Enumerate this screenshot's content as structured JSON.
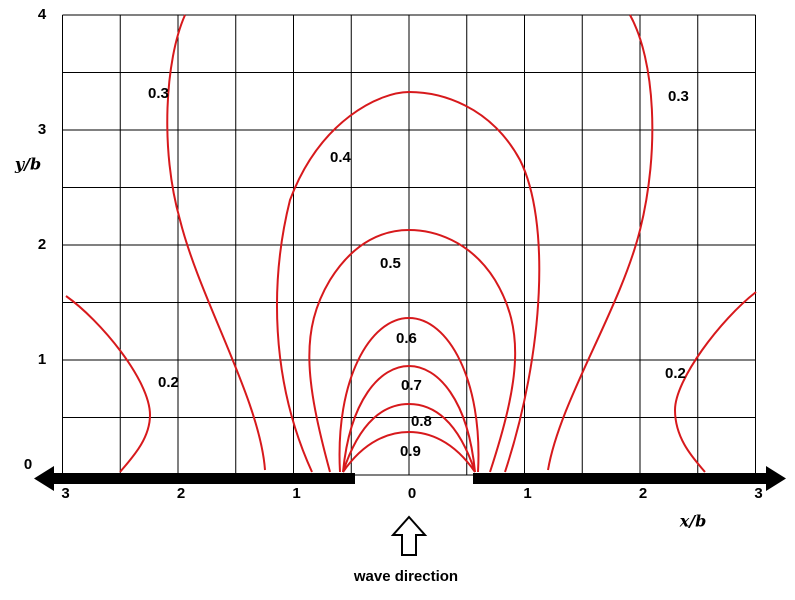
{
  "axes": {
    "x_label": "x/b",
    "y_label": "y/b",
    "xlim": [
      -3,
      3
    ],
    "ylim": [
      0,
      4
    ],
    "xticks": [
      {
        "value": -3,
        "label": "3"
      },
      {
        "value": -2,
        "label": "2"
      },
      {
        "value": -1,
        "label": "1"
      },
      0,
      1,
      2,
      3
    ],
    "yticks": [
      0,
      1,
      2,
      3,
      4
    ]
  },
  "contours": [
    {
      "level": 0.2
    },
    {
      "level": 0.3
    },
    {
      "level": 0.4
    },
    {
      "level": 0.5
    },
    {
      "level": 0.6
    },
    {
      "level": 0.7
    },
    {
      "level": 0.8
    },
    {
      "level": 0.9
    }
  ],
  "caption": "wave direction"
}
